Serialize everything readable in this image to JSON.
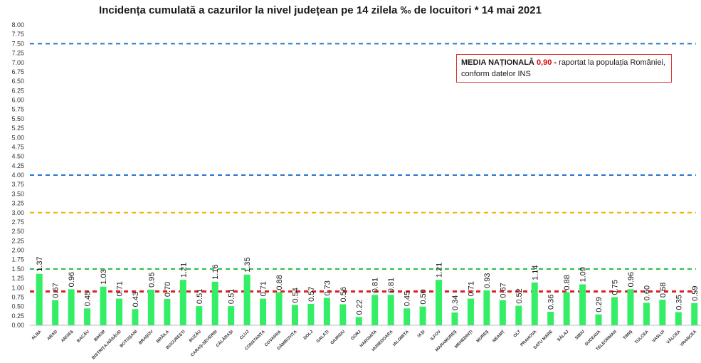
{
  "chart_data": {
    "type": "bar",
    "title": "Incidența cumulată a cazurilor la nivel județean pe 14 zilela ‰ de locuitori *  14 mai 2021",
    "categories": [
      "ALBA",
      "ARAD",
      "ARGEȘ",
      "BACĂU",
      "BIHOR",
      "BISTRIȚA-NĂSĂUD",
      "BOTOȘANI",
      "BRAȘOV",
      "BRĂILA",
      "BUCUREȘTI",
      "BUZĂU",
      "CARAȘ-SEVERIN",
      "CĂLĂRAȘI",
      "CLUJ",
      "CONSTANȚA",
      "COVASNA",
      "DÂMBOVIȚA",
      "DOLJ",
      "GALAȚI",
      "GIURGIU",
      "GORJ",
      "HARGHITA",
      "HUNEDOARA",
      "IALOMIȚA",
      "IAȘI",
      "ILFOV",
      "MARAMUREȘ",
      "MEHEDINȚI",
      "MUREȘ",
      "NEAMȚ",
      "OLT",
      "PRAHOVA",
      "SATU MARE",
      "SĂLAJ",
      "SIBIU",
      "SUCEAVA",
      "TELEORMAN",
      "TIMIȘ",
      "TULCEA",
      "VASLUI",
      "VÂLCEA",
      "VRANCEA"
    ],
    "values": [
      1.37,
      0.67,
      0.96,
      0.45,
      1.03,
      0.71,
      0.43,
      0.95,
      0.7,
      1.21,
      0.51,
      1.16,
      0.51,
      1.35,
      0.71,
      0.88,
      0.54,
      0.57,
      0.73,
      0.56,
      0.22,
      0.81,
      0.81,
      0.45,
      0.5,
      1.21,
      0.34,
      0.71,
      0.93,
      0.67,
      0.52,
      1.14,
      0.36,
      0.88,
      1.09,
      0.29,
      0.75,
      0.96,
      0.6,
      0.68,
      0.35,
      0.59
    ],
    "value_labels": [
      "1.37",
      "0.67",
      "0.96",
      "0.45",
      "1.03",
      "0.71",
      "0.43",
      "0.95",
      "0.70",
      "1.21",
      "0.51",
      "1.16",
      "0.51",
      "1.35",
      "0.71",
      "0.88",
      "0.54",
      "0.57",
      "0.73",
      "0.56",
      "0.22",
      "0.81",
      "0.81",
      "0.45",
      "0.50",
      "1.21",
      "0.34",
      "0.71",
      "0.93",
      "0.67",
      "0.52",
      "1.14",
      "0.36",
      "0.88",
      "1.09",
      "0.29",
      "0.75",
      "0.96",
      "0.60",
      "0.68",
      "0.35",
      "0.59"
    ],
    "ylim": [
      0,
      8
    ],
    "yticks": [
      "0.00",
      "0.25",
      "0.50",
      "0.75",
      "1.00",
      "1.25",
      "1.50",
      "1.75",
      "2.00",
      "2.25",
      "2.50",
      "2.75",
      "3.00",
      "3.25",
      "3.50",
      "3.75",
      "4.00",
      "4.25",
      "4.50",
      "4.75",
      "5.00",
      "5.25",
      "5.50",
      "5.75",
      "6.00",
      "6.25",
      "6.50",
      "6.75",
      "7.00",
      "7.25",
      "7.50",
      "7.75",
      "8.00"
    ],
    "xlabel": "",
    "ylabel": "",
    "grid": false,
    "bar_color": "#33ee66",
    "reference_lines": [
      {
        "value": 7.5,
        "color": "#2277cc"
      },
      {
        "value": 4.0,
        "color": "#2277cc"
      },
      {
        "value": 3.0,
        "color": "#f0b400"
      },
      {
        "value": 1.5,
        "color": "#22bb44"
      },
      {
        "value": 0.9,
        "color": "#e02020"
      }
    ]
  },
  "annotation": {
    "prefix": "MEDIA NAȚIONALĂ",
    "value": "0,90",
    "dash": "-",
    "line1_rest": "raportat la populația României,",
    "line2": "conform datelor INS"
  }
}
